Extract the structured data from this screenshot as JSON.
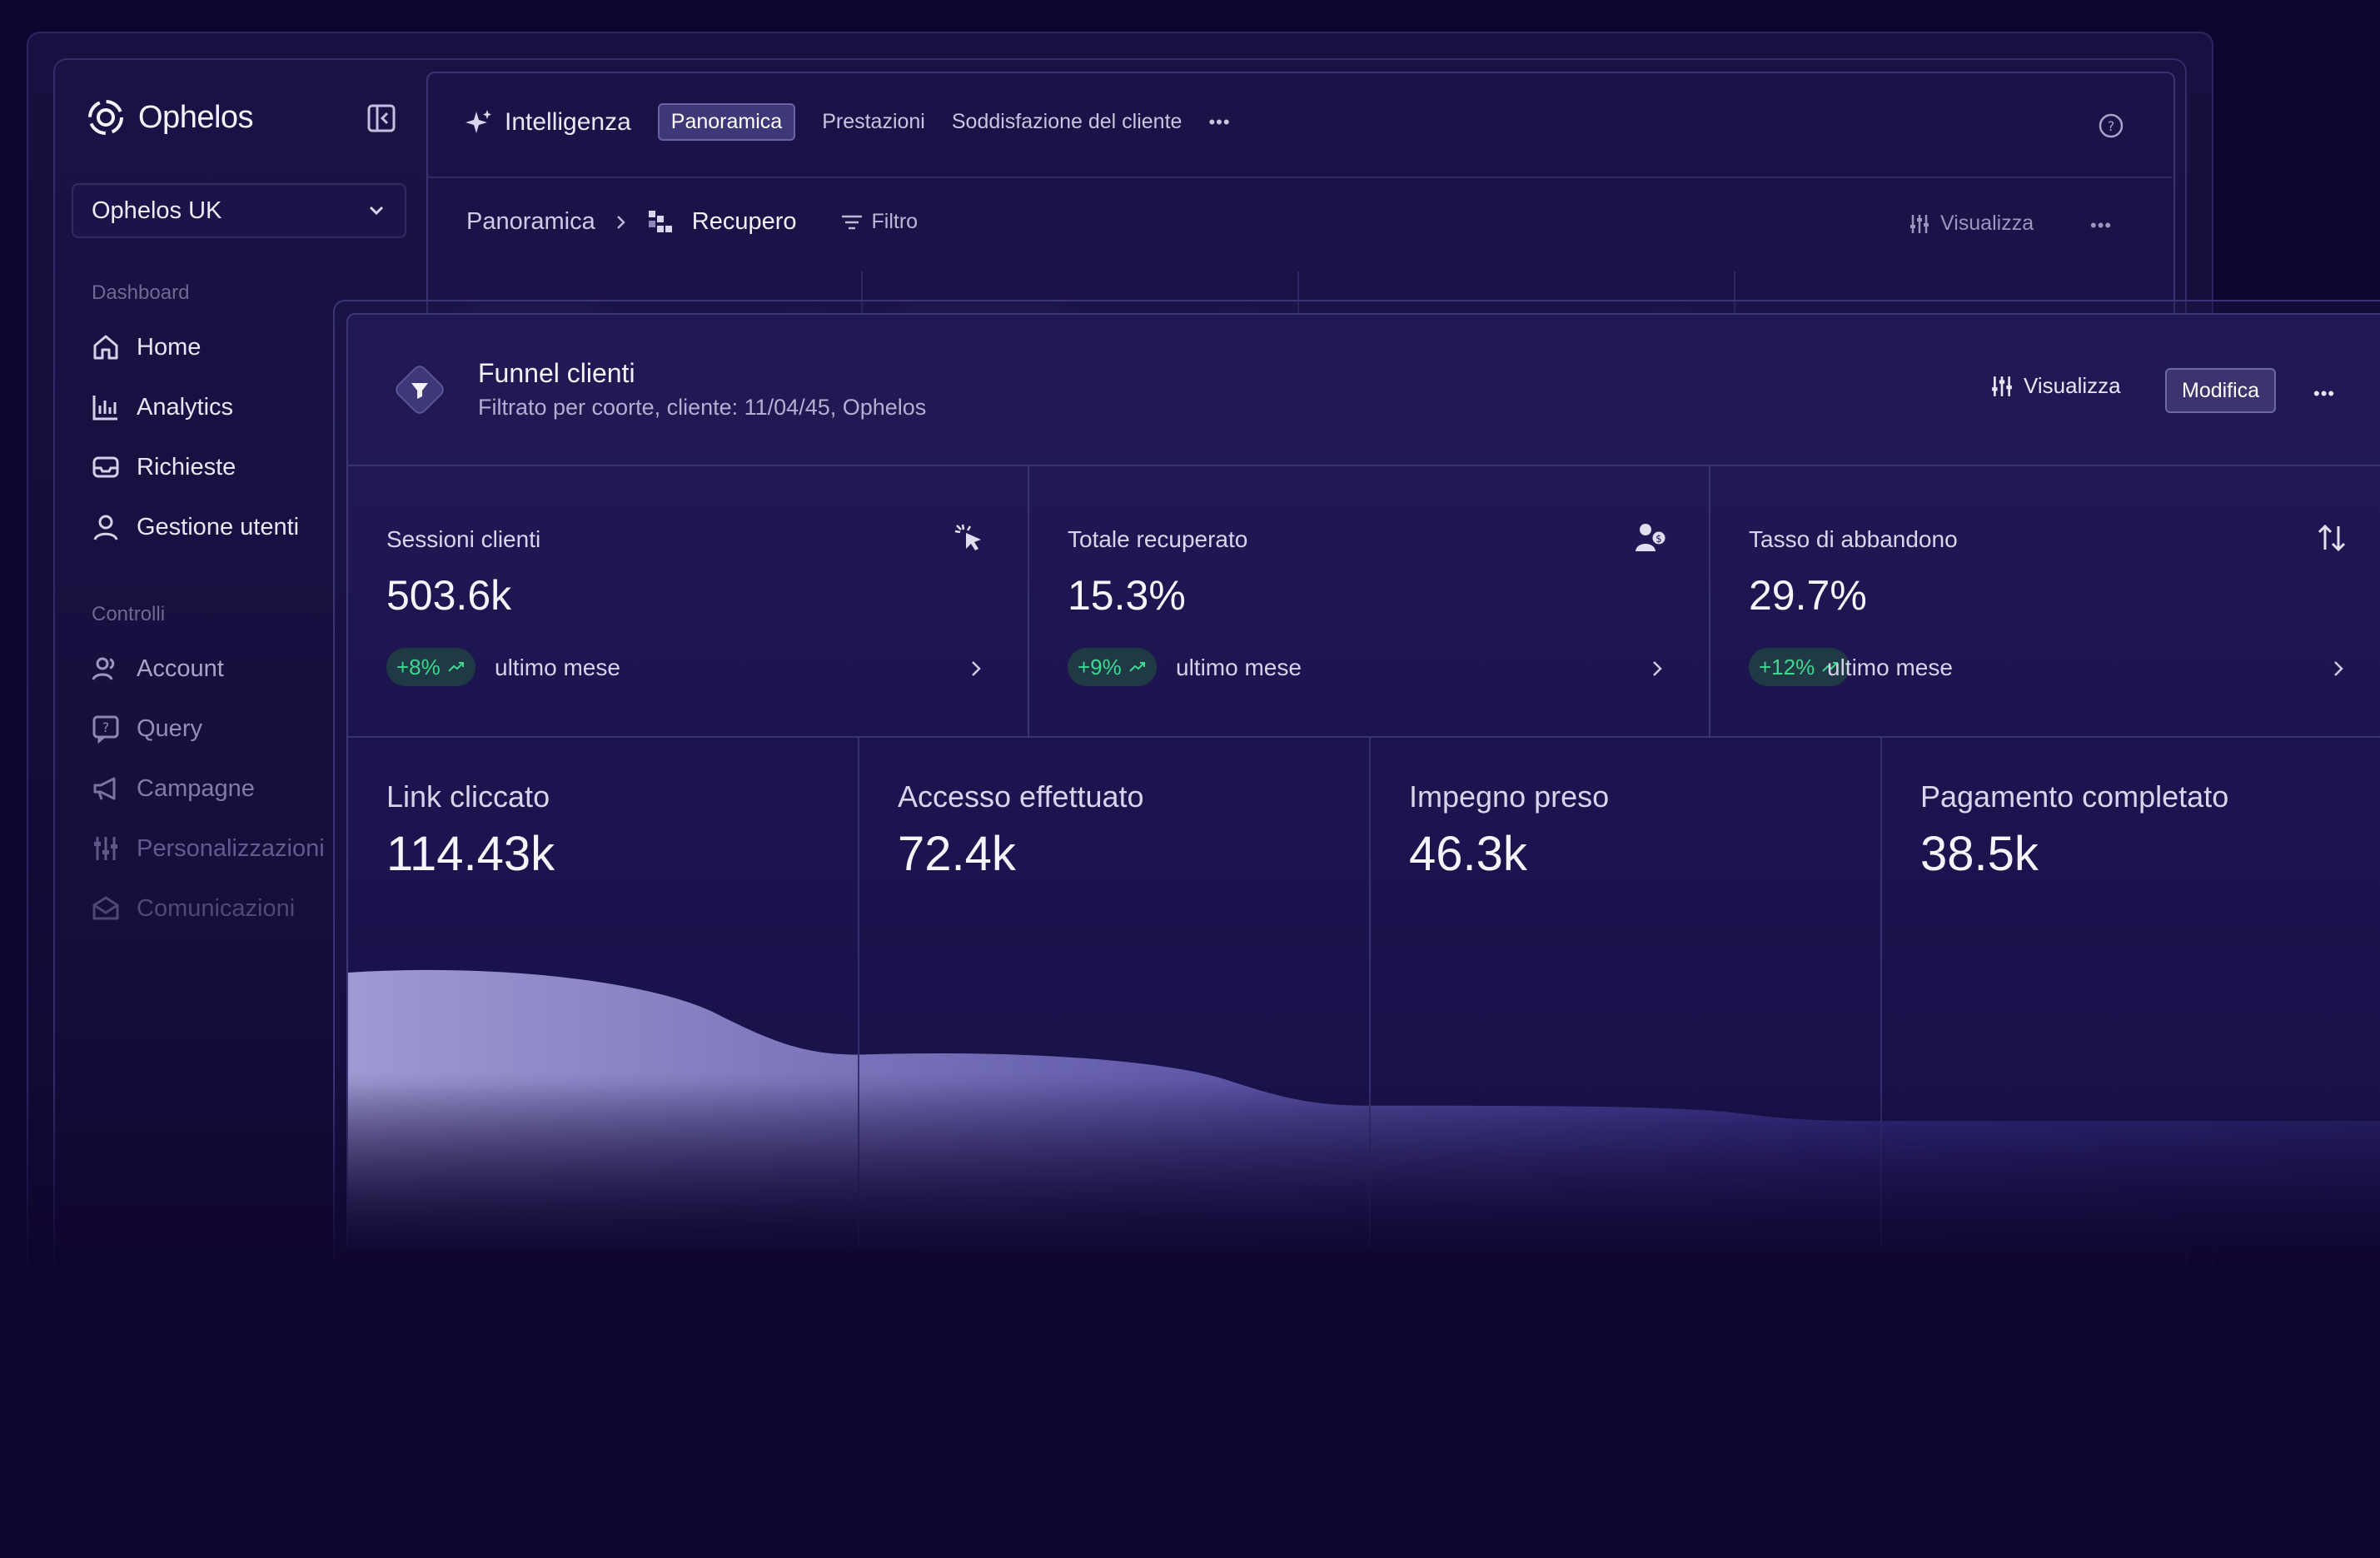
{
  "brand": {
    "name": "Ophelos"
  },
  "org_select": {
    "value": "Ophelos UK"
  },
  "sidebar": {
    "sections": [
      {
        "label": "Dashboard",
        "items": [
          {
            "label": "Home",
            "icon": "home-icon"
          },
          {
            "label": "Analytics",
            "icon": "analytics-icon"
          },
          {
            "label": "Richieste",
            "icon": "inbox-icon"
          },
          {
            "label": "Gestione utenti",
            "icon": "user-icon"
          }
        ]
      },
      {
        "label": "Controlli",
        "items": [
          {
            "label": "Account",
            "icon": "users-icon"
          },
          {
            "label": "Query",
            "icon": "question-icon"
          },
          {
            "label": "Campagne",
            "icon": "megaphone-icon"
          },
          {
            "label": "Personalizzazioni",
            "icon": "sliders-icon"
          },
          {
            "label": "Comunicazioni",
            "icon": "mail-icon"
          }
        ]
      }
    ]
  },
  "header": {
    "section": "Intelligenza",
    "tabs": [
      {
        "label": "Panoramica",
        "active": true
      },
      {
        "label": "Prestazioni",
        "active": false
      },
      {
        "label": "Soddisfazione del cliente",
        "active": false
      }
    ],
    "more": "•••"
  },
  "breadcrumb": {
    "root": "Panoramica",
    "current": "Recupero",
    "filter_label": "Filtro",
    "view_label": "Visualizza",
    "more": "•••"
  },
  "card": {
    "title": "Funnel clienti",
    "subtitle": "Filtrato per coorte, cliente: 11/04/45, Ophelos",
    "view_label": "Visualizza",
    "edit_label": "Modifica",
    "more": "•••"
  },
  "kpis": [
    {
      "label": "Sessioni clienti",
      "value": "503.6k",
      "change": "+8%",
      "period": "ultimo mese",
      "icon": "cursor-click-icon"
    },
    {
      "label": "Totale recuperato",
      "value": "15.3%",
      "change": "+9%",
      "period": "ultimo mese",
      "icon": "user-money-icon"
    },
    {
      "label": "Tasso di abbandono",
      "value": "29.7%",
      "change": "+12%",
      "period": "ultimo mese",
      "icon": "sort-arrows-icon"
    }
  ],
  "chart_data": {
    "type": "area",
    "title": "",
    "categories": [
      "Link cliccato",
      "Accesso effettuato",
      "Impegno preso",
      "Pagamento completato"
    ],
    "values": [
      114430,
      72400,
      46300,
      38500
    ],
    "display_values": [
      "114.43k",
      "72.4k",
      "46.3k",
      "38.5k"
    ],
    "colors": {
      "fill_top": "#8a85c6",
      "fill_bottom": "#2c2670"
    }
  },
  "colors": {
    "background": "#0f0630",
    "positive": "#3fd891",
    "accent": "#6a63a6"
  }
}
